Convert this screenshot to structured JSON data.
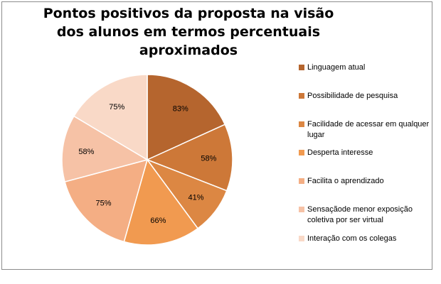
{
  "chart_data": {
    "type": "pie",
    "title": "Pontos positivos da proposta na visão dos alunos em termos percentuais aproximados",
    "categories": [
      "Linguagem atual",
      "Possibilidade de pesquisa",
      "Facilidade de acessar em qualquer lugar",
      "Desperta interesse",
      "Facilita o aprendizado",
      "Sensaçãode menor exposição coletiva por ser virtual",
      "Interação com os colegas"
    ],
    "values": [
      83,
      58,
      41,
      66,
      75,
      58,
      75
    ],
    "data_labels": [
      "83%",
      "58%",
      "41%",
      "66%",
      "75%",
      "58%",
      "75%"
    ],
    "colors": [
      "#b5652e",
      "#cd7838",
      "#dc8743",
      "#f19a50",
      "#f4ae84",
      "#f6c2a6",
      "#f9d9c7"
    ],
    "legend_position": "right"
  }
}
